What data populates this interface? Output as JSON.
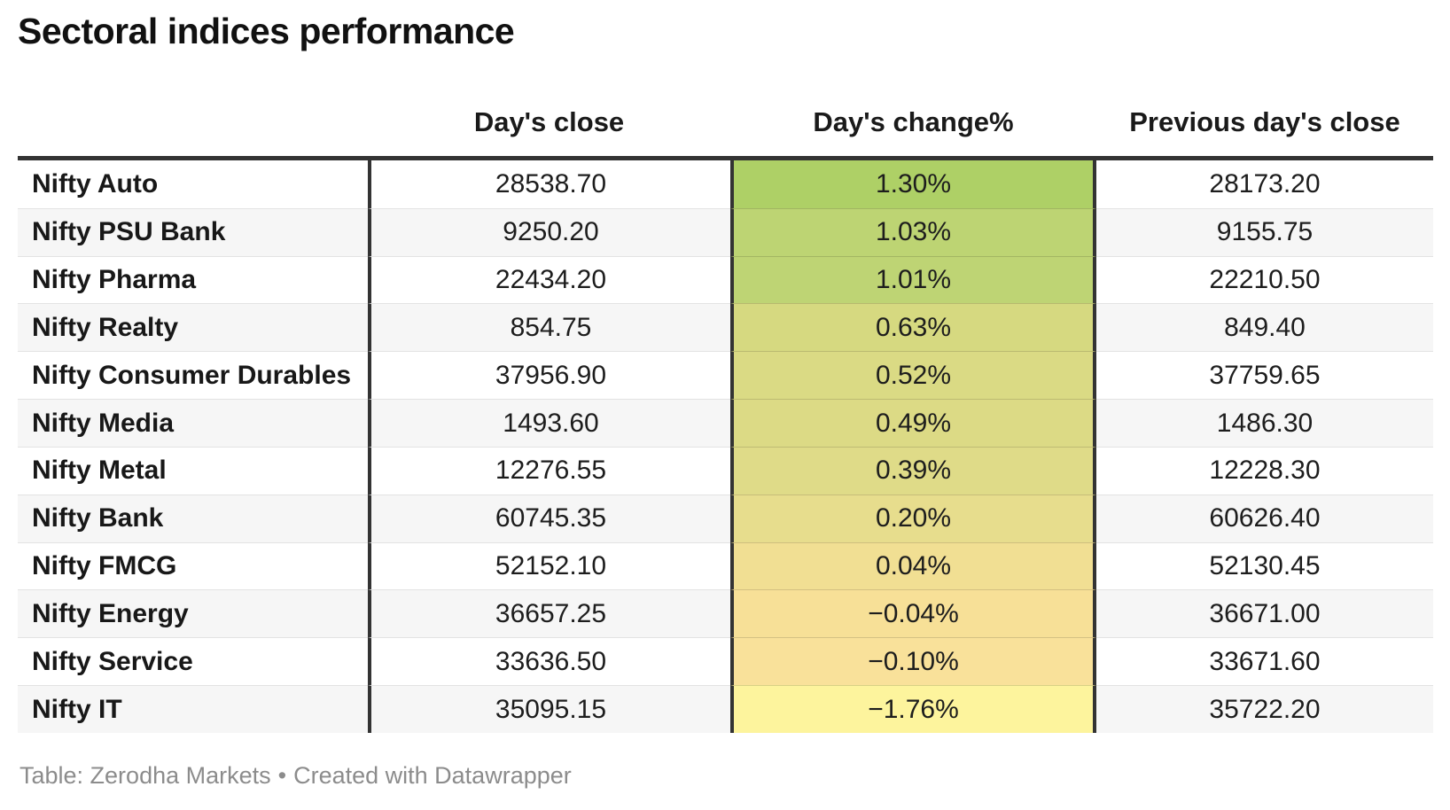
{
  "chart_data": {
    "type": "table",
    "title": "Sectoral indices performance",
    "columns": [
      "",
      "Day's close",
      "Day's change%",
      "Previous day's close"
    ],
    "heatmap_column": "Day's change%",
    "heatmap_scale": "green (highest gain) to pale yellow (largest loss)",
    "rows": [
      {
        "name": "Nifty Auto",
        "days_close": "28538.70",
        "days_change_pct": "1.30%",
        "change_value": 1.3,
        "change_color": "#aed066",
        "previous_days_close": "28173.20"
      },
      {
        "name": "Nifty PSU Bank",
        "days_close": "9250.20",
        "days_change_pct": "1.03%",
        "change_value": 1.03,
        "change_color": "#bdd473",
        "previous_days_close": "9155.75"
      },
      {
        "name": "Nifty Pharma",
        "days_close": "22434.20",
        "days_change_pct": "1.01%",
        "change_value": 1.01,
        "change_color": "#bed474",
        "previous_days_close": "22210.50"
      },
      {
        "name": "Nifty Realty",
        "days_close": "854.75",
        "days_change_pct": "0.63%",
        "change_value": 0.63,
        "change_color": "#d6d980",
        "previous_days_close": "849.40"
      },
      {
        "name": "Nifty Consumer Durables",
        "days_close": "37956.90",
        "days_change_pct": "0.52%",
        "change_value": 0.52,
        "change_color": "#dada84",
        "previous_days_close": "37759.65"
      },
      {
        "name": "Nifty Media",
        "days_close": "1493.60",
        "days_change_pct": "0.49%",
        "change_value": 0.49,
        "change_color": "#dcda85",
        "previous_days_close": "1486.30"
      },
      {
        "name": "Nifty Metal",
        "days_close": "12276.55",
        "days_change_pct": "0.39%",
        "change_value": 0.39,
        "change_color": "#dfdb88",
        "previous_days_close": "12228.30"
      },
      {
        "name": "Nifty Bank",
        "days_close": "60745.35",
        "days_change_pct": "0.20%",
        "change_value": 0.2,
        "change_color": "#e7dd8d",
        "previous_days_close": "60626.40"
      },
      {
        "name": "Nifty FMCG",
        "days_close": "52152.10",
        "days_change_pct": "0.04%",
        "change_value": 0.04,
        "change_color": "#f1df93",
        "previous_days_close": "52130.45"
      },
      {
        "name": "Nifty Energy",
        "days_close": "36657.25",
        "days_change_pct": "−0.04%",
        "change_value": -0.04,
        "change_color": "#f7e097",
        "previous_days_close": "36671.00"
      },
      {
        "name": "Nifty Service",
        "days_close": "33636.50",
        "days_change_pct": "−0.10%",
        "change_value": -0.1,
        "change_color": "#f9e19a",
        "previous_days_close": "33671.60"
      },
      {
        "name": "Nifty IT",
        "days_close": "35095.15",
        "days_change_pct": "−1.76%",
        "change_value": -1.76,
        "change_color": "#fdf49d",
        "previous_days_close": "35722.20"
      }
    ],
    "footer": {
      "source": "Table: Zerodha Markets",
      "separator": "•",
      "credit": "Created with Datawrapper"
    },
    "style_colors": {
      "header_divider": "#333333",
      "column_divider": "#333333",
      "row_stripe": "#f6f6f6",
      "footer_text": "#8c8c8c"
    }
  }
}
